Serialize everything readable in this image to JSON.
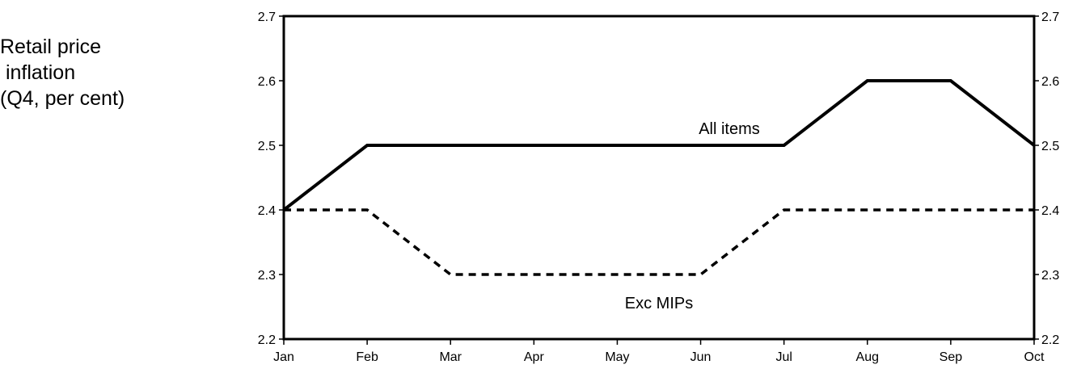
{
  "chart_data": {
    "type": "line",
    "ylabel_lines": [
      "Retail price",
      " inflation",
      "(Q4, per cent)"
    ],
    "categories": [
      "Jan",
      "Feb",
      "Mar",
      "Apr",
      "May",
      "Jun",
      "Jul",
      "Aug",
      "Sep",
      "Oct"
    ],
    "ylim": [
      2.2,
      2.7
    ],
    "yticks": [
      "2.2",
      "2.3",
      "2.4",
      "2.5",
      "2.6",
      "2.7"
    ],
    "right_axis": true,
    "grid": false,
    "legend": "none",
    "series": [
      {
        "name": "All items",
        "style": "solid",
        "color": "#000000",
        "values": [
          2.4,
          2.5,
          2.5,
          2.5,
          2.5,
          2.5,
          2.5,
          2.6,
          2.6,
          2.5
        ]
      },
      {
        "name": "Exc MIPs",
        "style": "dashed",
        "color": "#000000",
        "values": [
          2.4,
          2.4,
          2.3,
          2.3,
          2.3,
          2.3,
          2.4,
          2.4,
          2.4,
          2.4
        ]
      }
    ]
  }
}
